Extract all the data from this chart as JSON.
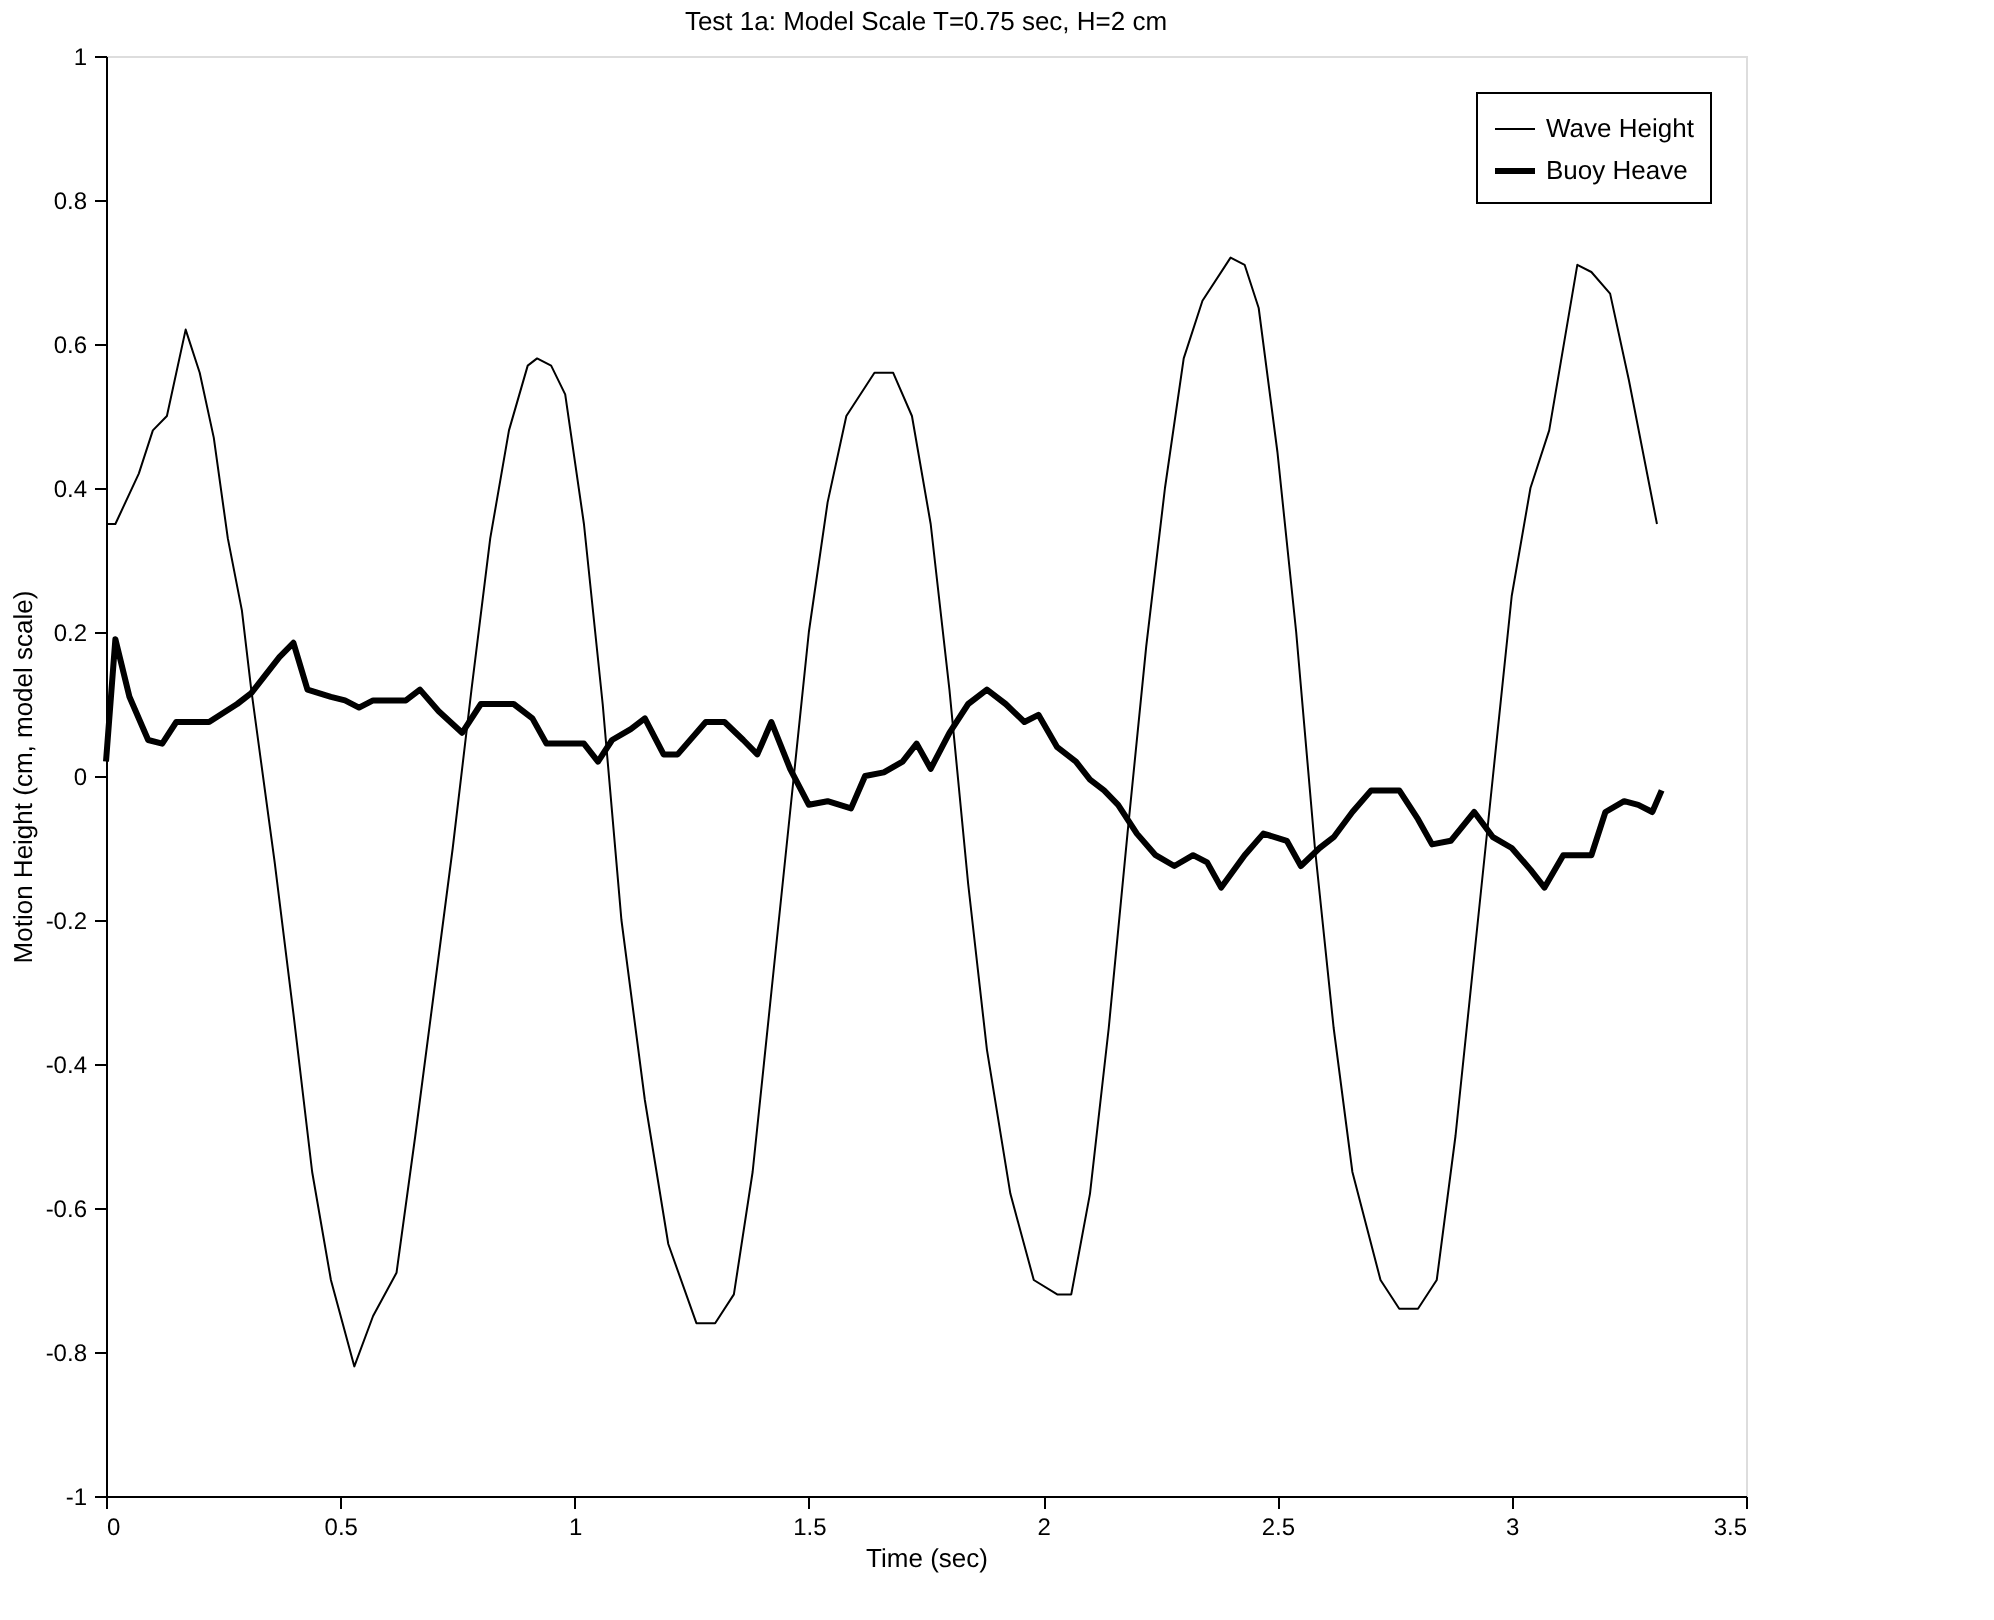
{
  "chart_data": {
    "type": "line",
    "title": "Test 1a: Model Scale T=0.75 sec, H=2 cm",
    "xlabel": "Time (sec)",
    "ylabel": "Motion Height (cm, model scale)",
    "xlim": [
      0,
      3.5
    ],
    "xticks": [
      0,
      0.5,
      1,
      1.5,
      2,
      2.5,
      3,
      3.5
    ],
    "ylim": [
      -1,
      1
    ],
    "yticks": [
      -1,
      -0.8,
      -0.6,
      -0.4,
      -0.2,
      0,
      0.2,
      0.4,
      0.6,
      0.8,
      1
    ],
    "grid": false,
    "legend": "top right",
    "marker": "none",
    "series": [
      {
        "name": "Wave Height",
        "color": "#000000",
        "line_style": "solid",
        "x": [
          0,
          0.02,
          0.07,
          0.1,
          0.13,
          0.17,
          0.2,
          0.23,
          0.26,
          0.29,
          0.31,
          0.36,
          0.4,
          0.44,
          0.48,
          0.53,
          0.57,
          0.62,
          0.66,
          0.7,
          0.74,
          0.78,
          0.82,
          0.86,
          0.9,
          0.92,
          0.95,
          0.98,
          1.02,
          1.06,
          1.1,
          1.15,
          1.2,
          1.26,
          1.3,
          1.34,
          1.38,
          1.42,
          1.46,
          1.5,
          1.54,
          1.58,
          1.64,
          1.68,
          1.72,
          1.76,
          1.8,
          1.84,
          1.88,
          1.93,
          1.98,
          2.03,
          2.06,
          2.1,
          2.14,
          2.18,
          2.22,
          2.26,
          2.3,
          2.34,
          2.4,
          2.43,
          2.46,
          2.5,
          2.54,
          2.58,
          2.62,
          2.66,
          2.72,
          2.76,
          2.8,
          2.84,
          2.88,
          2.92,
          2.96,
          3.0,
          3.04,
          3.08,
          3.14,
          3.17,
          3.21,
          3.25,
          3.31
        ],
        "values": [
          0.35,
          0.35,
          0.42,
          0.48,
          0.5,
          0.62,
          0.56,
          0.47,
          0.33,
          0.23,
          0.12,
          -0.12,
          -0.33,
          -0.55,
          -0.7,
          -0.82,
          -0.75,
          -0.69,
          -0.5,
          -0.3,
          -0.1,
          0.12,
          0.33,
          0.48,
          0.57,
          0.58,
          0.57,
          0.53,
          0.35,
          0.1,
          -0.2,
          -0.45,
          -0.65,
          -0.76,
          -0.76,
          -0.72,
          -0.55,
          -0.3,
          -0.05,
          0.2,
          0.38,
          0.5,
          0.56,
          0.56,
          0.5,
          0.35,
          0.12,
          -0.15,
          -0.38,
          -0.58,
          -0.7,
          -0.72,
          -0.72,
          -0.58,
          -0.35,
          -0.08,
          0.18,
          0.4,
          0.58,
          0.66,
          0.72,
          0.71,
          0.65,
          0.45,
          0.2,
          -0.1,
          -0.35,
          -0.55,
          -0.7,
          -0.74,
          -0.74,
          -0.7,
          -0.5,
          -0.25,
          0.0,
          0.25,
          0.4,
          0.48,
          0.71,
          0.7,
          0.67,
          0.55,
          0.35
        ]
      },
      {
        "name": "Buoy Heave",
        "color": "#000000",
        "line_style": "solid",
        "x": [
          0,
          0.02,
          0.05,
          0.09,
          0.12,
          0.15,
          0.22,
          0.28,
          0.31,
          0.34,
          0.37,
          0.4,
          0.43,
          0.48,
          0.51,
          0.54,
          0.57,
          0.64,
          0.67,
          0.71,
          0.76,
          0.8,
          0.87,
          0.91,
          0.94,
          1.02,
          1.05,
          1.08,
          1.12,
          1.15,
          1.19,
          1.22,
          1.28,
          1.32,
          1.36,
          1.39,
          1.42,
          1.46,
          1.5,
          1.54,
          1.59,
          1.62,
          1.66,
          1.7,
          1.73,
          1.76,
          1.8,
          1.84,
          1.88,
          1.92,
          1.96,
          1.99,
          2.03,
          2.07,
          2.1,
          2.13,
          2.16,
          2.2,
          2.24,
          2.28,
          2.32,
          2.35,
          2.38,
          2.43,
          2.47,
          2.52,
          2.55,
          2.59,
          2.62,
          2.66,
          2.7,
          2.76,
          2.8,
          2.83,
          2.87,
          2.92,
          2.96,
          3.0,
          3.04,
          3.07,
          3.11,
          3.17,
          3.2,
          3.24,
          3.27,
          3.3,
          3.32
        ],
        "values": [
          0.02,
          0.19,
          0.11,
          0.05,
          0.045,
          0.075,
          0.075,
          0.1,
          0.115,
          0.14,
          0.165,
          0.185,
          0.12,
          0.11,
          0.105,
          0.095,
          0.105,
          0.105,
          0.12,
          0.09,
          0.06,
          0.1,
          0.1,
          0.08,
          0.045,
          0.045,
          0.02,
          0.05,
          0.065,
          0.08,
          0.03,
          0.03,
          0.075,
          0.075,
          0.05,
          0.03,
          0.075,
          0.01,
          -0.04,
          -0.035,
          -0.045,
          0.0,
          0.005,
          0.02,
          0.045,
          0.01,
          0.06,
          0.1,
          0.12,
          0.1,
          0.075,
          0.085,
          0.04,
          0.02,
          -0.005,
          -0.02,
          -0.04,
          -0.08,
          -0.11,
          -0.125,
          -0.11,
          -0.12,
          -0.155,
          -0.11,
          -0.08,
          -0.09,
          -0.125,
          -0.1,
          -0.085,
          -0.05,
          -0.02,
          -0.02,
          -0.06,
          -0.095,
          -0.09,
          -0.05,
          -0.085,
          -0.1,
          -0.13,
          -0.155,
          -0.11,
          -0.11,
          -0.05,
          -0.035,
          -0.04,
          -0.05,
          -0.02
        ]
      }
    ]
  }
}
